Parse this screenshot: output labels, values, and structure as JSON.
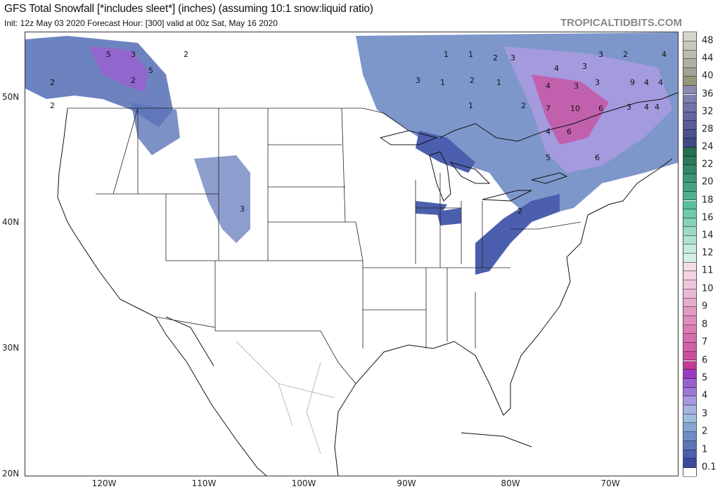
{
  "header": {
    "title": "GFS Total Snowfall [*includes sleet*] (inches) (assuming 10:1 snow:liquid ratio)",
    "subtitle": "Init: 12z May 03 2020   Forecast Hour: [300]   valid at 00z Sat, May 16 2020",
    "brand": "TROPICALTIDBITS.COM"
  },
  "axes": {
    "lat_labels": [
      "20N",
      "30N",
      "40N",
      "50N"
    ],
    "lon_labels": [
      "120W",
      "110W",
      "100W",
      "90W",
      "80W",
      "70W"
    ]
  },
  "colorbar": {
    "labels": [
      "0.1",
      "1",
      "2",
      "3",
      "4",
      "5",
      "6",
      "7",
      "8",
      "9",
      "10",
      "11",
      "12",
      "14",
      "16",
      "18",
      "20",
      "22",
      "24",
      "28",
      "32",
      "36",
      "40",
      "44",
      "48"
    ],
    "colors_bottom_to_top": [
      "#ffffff",
      "#3d4a9e",
      "#4c5fae",
      "#5d75b9",
      "#6f8cc4",
      "#85a6d2",
      "#9ec0e0",
      "#a7b3e0",
      "#a89ae0",
      "#9d79d6",
      "#9a5fd0",
      "#9a3dc4",
      "#c53a96",
      "#cb4e9e",
      "#d160a6",
      "#d76eae",
      "#dc7eb6",
      "#e08dbd",
      "#e39bc4",
      "#e7aacc",
      "#ebb8d3",
      "#efc5da",
      "#f3d3e3",
      "#f5dde9",
      "#d6f0e6",
      "#c4ebdc",
      "#b0e3d0",
      "#9cdcc4",
      "#86d4b8",
      "#6dcaaa",
      "#5cbf9b",
      "#4fb28e",
      "#44a482",
      "#3a9675",
      "#318866",
      "#2b7a5a",
      "#276d50",
      "#414a88",
      "#4d5390",
      "#595c98",
      "#6466a0",
      "#7072a8",
      "#7d7fae",
      "#8a8ab2",
      "#97977a",
      "#a3a296",
      "#b0afa2",
      "#bcbcae",
      "#c9c8bb",
      "#d6d5c9",
      "#e3e2d8"
    ]
  },
  "contour_labels": [
    "5",
    "3",
    "2",
    "2",
    "1",
    "1",
    "2",
    "3",
    "1",
    "2",
    "3",
    "1",
    "2",
    "4",
    "3",
    "3",
    "2",
    "4",
    "4",
    "3",
    "3",
    "9",
    "4",
    "7",
    "10",
    "6",
    "4",
    "6",
    "4",
    "5",
    "6",
    "2",
    "4",
    "3",
    "2",
    "2",
    "5",
    "3",
    "4",
    "1"
  ]
}
